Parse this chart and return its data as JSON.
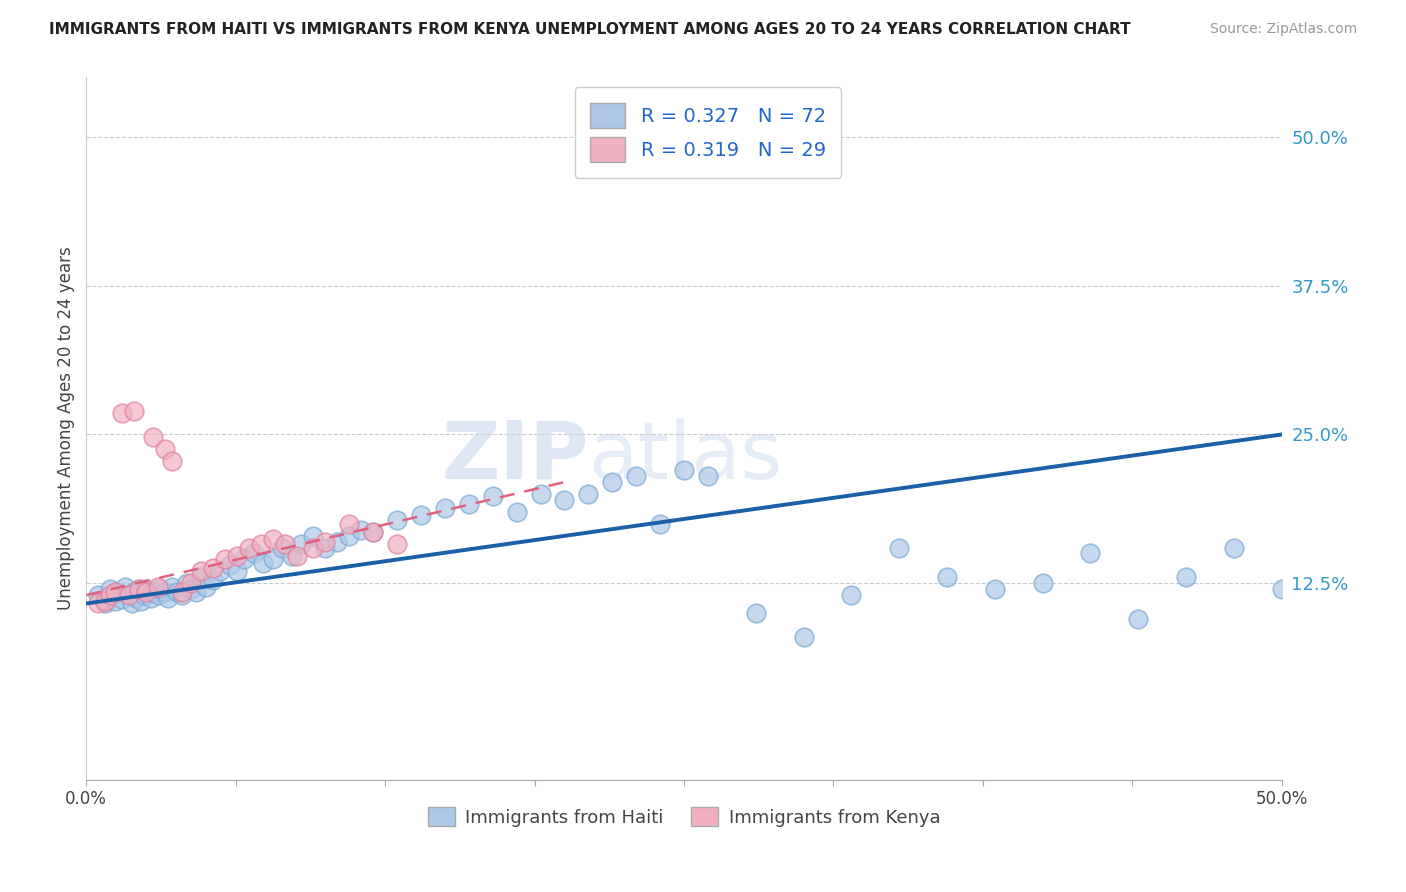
{
  "title": "IMMIGRANTS FROM HAITI VS IMMIGRANTS FROM KENYA UNEMPLOYMENT AMONG AGES 20 TO 24 YEARS CORRELATION CHART",
  "source": "Source: ZipAtlas.com",
  "ylabel": "Unemployment Among Ages 20 to 24 years",
  "xlim": [
    0.0,
    0.5
  ],
  "ylim": [
    -0.04,
    0.55
  ],
  "xticks": [
    0.0,
    0.0625,
    0.125,
    0.1875,
    0.25,
    0.3125,
    0.375,
    0.4375,
    0.5
  ],
  "xticklabels": [
    "0.0%",
    "",
    "",
    "",
    "",
    "",
    "",
    "",
    "50.0%"
  ],
  "yticks": [
    0.125,
    0.25,
    0.375,
    0.5
  ],
  "yticklabels": [
    "12.5%",
    "25.0%",
    "37.5%",
    "50.0%"
  ],
  "haiti_R": 0.327,
  "haiti_N": 72,
  "kenya_R": 0.319,
  "kenya_N": 29,
  "haiti_color": "#adc8e8",
  "haiti_edge_color": "#7aaad0",
  "kenya_color": "#f0b0c0",
  "kenya_edge_color": "#e080a0",
  "haiti_line_color": "#1a5fa8",
  "kenya_line_color": "#e06080",
  "watermark_color": "#d8e4f0",
  "haiti_x": [
    0.005,
    0.008,
    0.01,
    0.012,
    0.013,
    0.015,
    0.016,
    0.018,
    0.019,
    0.02,
    0.021,
    0.022,
    0.023,
    0.024,
    0.025,
    0.027,
    0.028,
    0.03,
    0.031,
    0.033,
    0.034,
    0.036,
    0.038,
    0.04,
    0.042,
    0.044,
    0.046,
    0.048,
    0.05,
    0.053,
    0.056,
    0.06,
    0.063,
    0.066,
    0.07,
    0.074,
    0.078,
    0.082,
    0.086,
    0.09,
    0.095,
    0.1,
    0.105,
    0.11,
    0.115,
    0.12,
    0.13,
    0.14,
    0.15,
    0.16,
    0.17,
    0.18,
    0.19,
    0.2,
    0.21,
    0.22,
    0.23,
    0.24,
    0.25,
    0.26,
    0.28,
    0.3,
    0.32,
    0.34,
    0.36,
    0.38,
    0.4,
    0.42,
    0.44,
    0.46,
    0.48,
    0.5
  ],
  "haiti_y": [
    0.115,
    0.108,
    0.12,
    0.11,
    0.118,
    0.112,
    0.122,
    0.115,
    0.108,
    0.118,
    0.113,
    0.12,
    0.11,
    0.115,
    0.12,
    0.113,
    0.118,
    0.115,
    0.12,
    0.118,
    0.113,
    0.122,
    0.118,
    0.115,
    0.125,
    0.12,
    0.118,
    0.13,
    0.122,
    0.128,
    0.135,
    0.14,
    0.135,
    0.145,
    0.15,
    0.142,
    0.145,
    0.155,
    0.148,
    0.158,
    0.165,
    0.155,
    0.16,
    0.165,
    0.17,
    0.168,
    0.178,
    0.182,
    0.188,
    0.192,
    0.198,
    0.185,
    0.2,
    0.195,
    0.2,
    0.21,
    0.215,
    0.175,
    0.22,
    0.215,
    0.1,
    0.08,
    0.115,
    0.155,
    0.13,
    0.12,
    0.125,
    0.15,
    0.095,
    0.13,
    0.155,
    0.12
  ],
  "kenya_x": [
    0.005,
    0.008,
    0.01,
    0.012,
    0.015,
    0.018,
    0.02,
    0.022,
    0.025,
    0.028,
    0.03,
    0.033,
    0.036,
    0.04,
    0.044,
    0.048,
    0.053,
    0.058,
    0.063,
    0.068,
    0.073,
    0.078,
    0.083,
    0.088,
    0.095,
    0.1,
    0.11,
    0.12,
    0.13
  ],
  "kenya_y": [
    0.108,
    0.11,
    0.115,
    0.118,
    0.268,
    0.115,
    0.27,
    0.12,
    0.118,
    0.248,
    0.122,
    0.238,
    0.228,
    0.118,
    0.125,
    0.135,
    0.138,
    0.145,
    0.148,
    0.155,
    0.158,
    0.162,
    0.158,
    0.148,
    0.155,
    0.16,
    0.175,
    0.168,
    0.158
  ],
  "haiti_line_x0": 0.0,
  "haiti_line_x1": 0.5,
  "haiti_line_y0": 0.108,
  "haiti_line_y1": 0.25,
  "kenya_line_x0": 0.0,
  "kenya_line_x1": 0.2,
  "kenya_line_y0": 0.115,
  "kenya_line_y1": 0.21
}
